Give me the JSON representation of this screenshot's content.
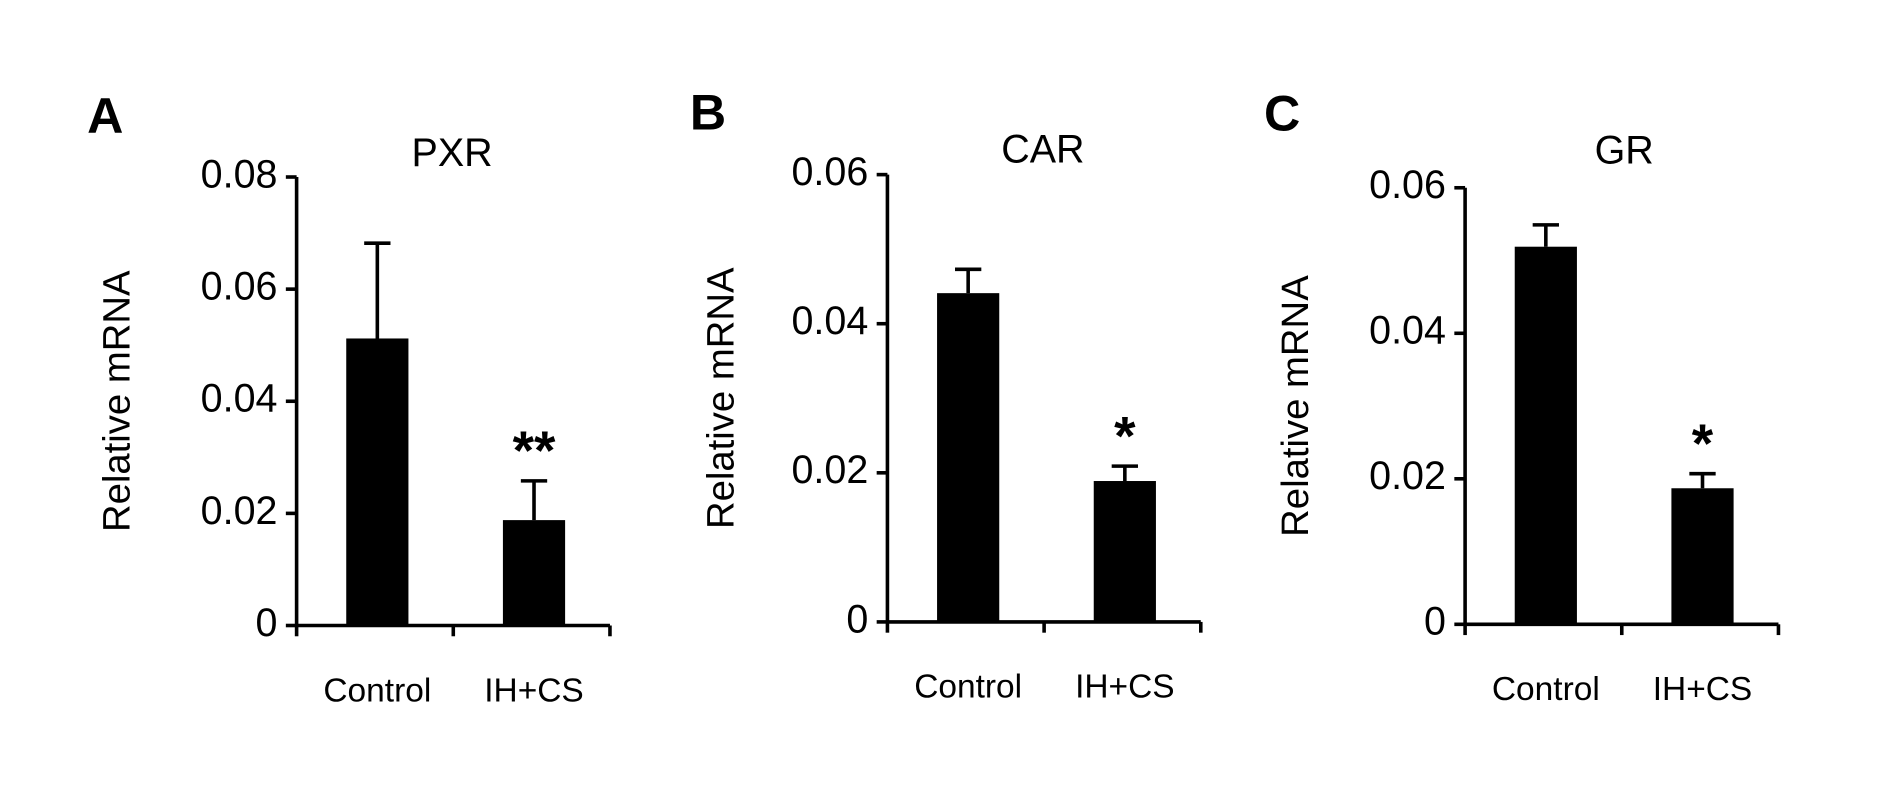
{
  "chart_data": [
    {
      "type": "bar",
      "panel": "A",
      "title": "PXR",
      "y_label": "Relative mRNA",
      "categories": [
        "Control",
        "IH+CS"
      ],
      "values": [
        0.0512,
        0.0188
      ],
      "errors": [
        0.017,
        0.007
      ],
      "significance": [
        null,
        "**"
      ],
      "color": "#000000",
      "ylim": [
        0,
        0.08
      ],
      "yticks": [
        0,
        0.02,
        0.04,
        0.06,
        0.08
      ]
    },
    {
      "type": "bar",
      "panel": "B",
      "title": "CAR",
      "y_label": "Relative mRNA",
      "categories": [
        "Control",
        "IH+CS"
      ],
      "values": [
        0.0441,
        0.0189
      ],
      "errors": [
        0.0032,
        0.002
      ],
      "significance": [
        null,
        "*"
      ],
      "color": "#000000",
      "ylim": [
        0,
        0.06
      ],
      "yticks": [
        0,
        0.02,
        0.04,
        0.06
      ]
    },
    {
      "type": "bar",
      "panel": "C",
      "title": "GR",
      "y_label": "Relative mRNA",
      "categories": [
        "Control",
        "IH+CS"
      ],
      "values": [
        0.0519,
        0.0187
      ],
      "errors": [
        0.003,
        0.002
      ],
      "significance": [
        null,
        "*"
      ],
      "color": "#000000",
      "ylim": [
        0,
        0.06
      ],
      "yticks": [
        0,
        0.02,
        0.04,
        0.06
      ]
    }
  ]
}
